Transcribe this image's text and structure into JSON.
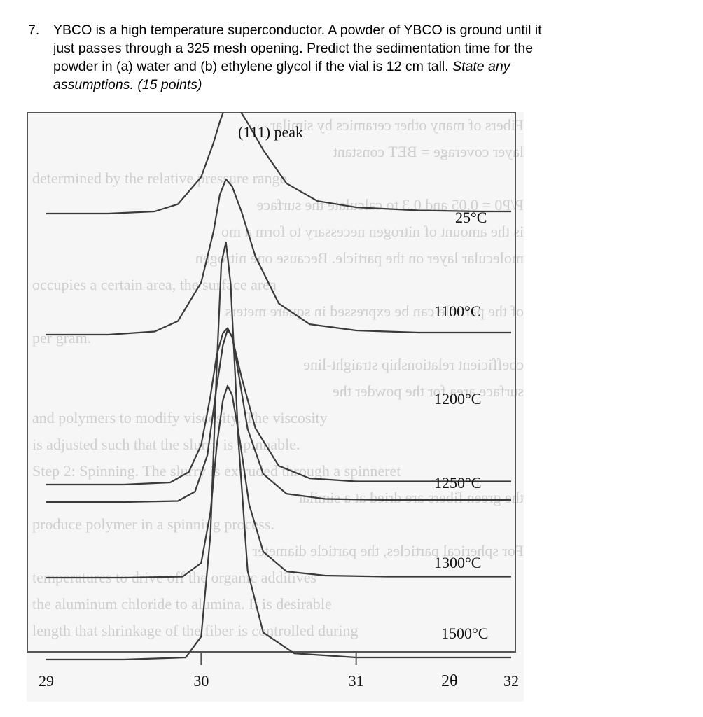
{
  "question": {
    "number": "7.",
    "line1": "YBCO is a high temperature superconductor.  A powder of YBCO is ground until it",
    "line2": "just passes through a 325 mesh opening.  Predict the sedimentation time for the",
    "line3": "powder in (a) water and (b) ethylene glycol if the vial is 12 cm tall.",
    "line3_italic": "State any",
    "line4_italic": "assumptions.",
    "points_prefix": "(",
    "points": "15 points",
    "points_suffix": ")"
  },
  "background_text": [
    "Fibers of many other ceramics by similar",
    "layer coverage = BET constant",
    "determined by the relative pressure range",
    "P/P0 = 0.05 and 0.3 to calculate the surface",
    "is the amount of nitrogen necessary to form a mo",
    "molecular layer on the particle. Because one nitrogen",
    "occupies a certain area, the surface area",
    "of the particle can be expressed in square meters",
    "per gram.",
    "coefficient relationship straight-line",
    "surface area for the powder the",
    "and polymers to modify viscosity. The viscosity",
    "is adjusted such that the slurry is spinnable.",
    "Step 2: Spinning. The slurry is extruded through a spinneret",
    "the green fibers are dried at a similar",
    "produce polymer in a spinning process.",
    "For spherical particles, the particle diameter",
    "temperatures to drive off the organic additives",
    "the aluminum chloride to alumina. It is desirable",
    "length that shrinkage of the fiber is controlled during"
  ],
  "chart_data": {
    "type": "line",
    "title": "",
    "xlabel": "2θ",
    "ylabel": "",
    "xlim": [
      29,
      32
    ],
    "x_ticks": [
      29,
      30,
      31,
      32
    ],
    "x_tick_labels": [
      "29",
      "30",
      "31",
      "32"
    ],
    "peak_annotation": "(111) peak",
    "grid": false,
    "series": [
      {
        "name": "25°C",
        "baseline_level": 0.0,
        "x": [
          29.0,
          29.4,
          29.7,
          29.85,
          30.0,
          30.08,
          30.12,
          30.16,
          30.24,
          30.3,
          30.4,
          30.55,
          30.75,
          31.0,
          31.4,
          31.8,
          32.0
        ],
        "y": [
          0.0,
          0.0,
          0.004,
          0.018,
          0.07,
          0.136,
          0.176,
          0.208,
          0.202,
          0.174,
          0.122,
          0.058,
          0.024,
          0.012,
          0.006,
          0.004,
          0.004
        ]
      },
      {
        "name": "1100°C",
        "baseline_level": 0.0,
        "x": [
          29.0,
          29.4,
          29.7,
          29.85,
          30.0,
          30.08,
          30.12,
          30.16,
          30.2,
          30.26,
          30.35,
          30.5,
          30.7,
          31.0,
          31.4,
          32.0
        ],
        "y": [
          0.0,
          0.0,
          0.006,
          0.026,
          0.1,
          0.198,
          0.268,
          0.298,
          0.284,
          0.236,
          0.15,
          0.06,
          0.02,
          0.008,
          0.004,
          0.004
        ]
      },
      {
        "name": "1200°C",
        "baseline_level": 0.0,
        "x": [
          29.0,
          29.5,
          29.8,
          29.92,
          30.0,
          30.06,
          30.1,
          30.14,
          30.17,
          30.2,
          30.26,
          30.35,
          30.5,
          30.7,
          31.0,
          32.0
        ],
        "y": [
          0.0,
          0.0,
          0.004,
          0.024,
          0.076,
          0.17,
          0.248,
          0.29,
          0.3,
          0.282,
          0.206,
          0.108,
          0.036,
          0.012,
          0.006,
          0.006
        ]
      },
      {
        "name": "1250°C",
        "baseline_level": 0.0,
        "x": [
          29.0,
          29.5,
          29.85,
          29.96,
          30.04,
          30.1,
          30.14,
          30.17,
          30.2,
          30.24,
          30.3,
          30.4,
          30.55,
          30.8,
          31.2,
          32.0
        ],
        "y": [
          0.0,
          0.0,
          0.002,
          0.02,
          0.09,
          0.222,
          0.3,
          0.33,
          0.318,
          0.248,
          0.14,
          0.054,
          0.016,
          0.006,
          0.004,
          0.004
        ]
      },
      {
        "name": "1300°C",
        "baseline_level": 0.0,
        "x": [
          29.0,
          29.5,
          29.88,
          30.0,
          30.06,
          30.1,
          30.14,
          30.17,
          30.2,
          30.25,
          30.31,
          30.4,
          30.55,
          30.8,
          31.2,
          32.0
        ],
        "y": [
          0.0,
          0.0,
          0.002,
          0.028,
          0.126,
          0.252,
          0.34,
          0.368,
          0.35,
          0.262,
          0.14,
          0.05,
          0.012,
          0.004,
          0.002,
          0.002
        ]
      },
      {
        "name": "1500°C",
        "baseline_level": 0.0,
        "x": [
          29.0,
          29.5,
          29.9,
          30.0,
          30.06,
          30.1,
          30.13,
          30.16,
          30.19,
          30.24,
          30.3,
          30.4,
          30.6,
          31.0,
          32.0
        ],
        "y": [
          0.0,
          0.0,
          0.004,
          0.044,
          0.24,
          0.56,
          0.76,
          0.8,
          0.72,
          0.42,
          0.17,
          0.052,
          0.012,
          0.004,
          0.004
        ]
      }
    ]
  },
  "colors": {
    "line": "#3a3a3a",
    "frame": "#555555",
    "ghost_text": "#cfcfcf",
    "background": "#f6f6f6"
  }
}
